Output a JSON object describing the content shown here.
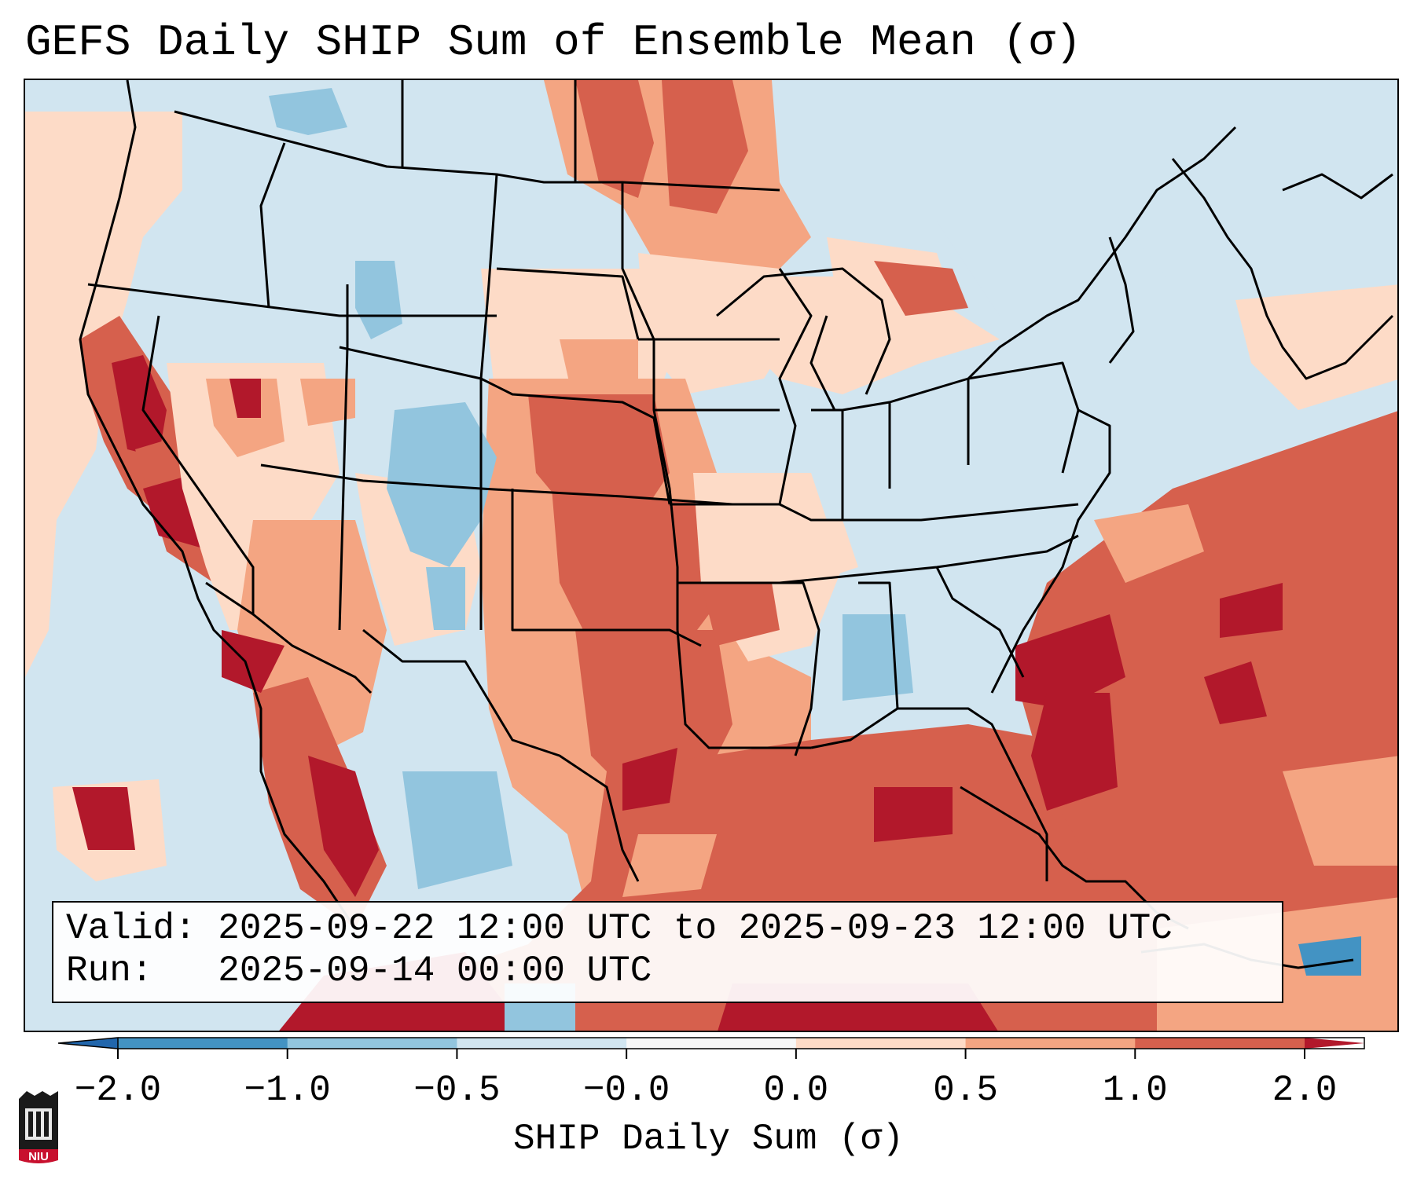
{
  "figure": {
    "title": "GEFS Daily SHIP Sum of Ensemble Mean (σ)"
  },
  "info_box": {
    "valid_label": "Valid:",
    "valid_value": "2025-09-22 12:00 UTC to 2025-09-23 12:00 UTC",
    "run_label": "Run:",
    "run_value": "2025-09-14 00:00 UTC"
  },
  "colorbar": {
    "label": "SHIP Daily Sum (σ)",
    "ticks": [
      "−2.0",
      "−1.0",
      "−0.5",
      "−0.0",
      "0.0",
      "0.5",
      "1.0",
      "2.0"
    ],
    "bins": [
      {
        "range": "< -2.0",
        "color": "#2166ac"
      },
      {
        "range": "-2.0 to -1.0",
        "color": "#4393c3"
      },
      {
        "range": "-1.0 to -0.5",
        "color": "#92c5de"
      },
      {
        "range": "-0.5 to -0.0",
        "color": "#d1e5f0"
      },
      {
        "range": "-0.0 to 0.0",
        "color": "#f7f7f7"
      },
      {
        "range": "0.0 to 0.5",
        "color": "#fddbc7"
      },
      {
        "range": "0.5 to 1.0",
        "color": "#f4a582"
      },
      {
        "range": "1.0 to 2.0",
        "color": "#d6604d"
      },
      {
        "range": "> 2.0",
        "color": "#b2182b"
      }
    ]
  },
  "logo": {
    "text": "NIU"
  }
}
